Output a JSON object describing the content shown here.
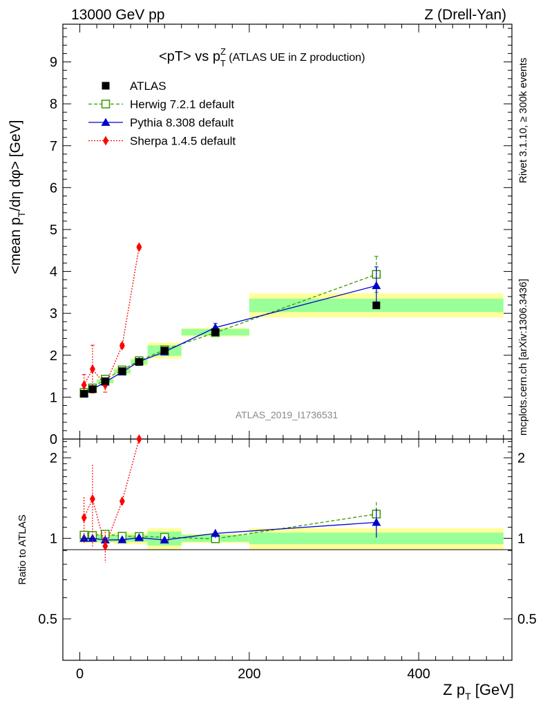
{
  "header": {
    "left": "13000 GeV pp",
    "right": "Z (Drell-Yan)"
  },
  "side_labels": {
    "rivet": "Rivet 3.1.10, ≥ 300k events",
    "mcplots": "mcplots.cern.ch [arXiv:1306.3436]"
  },
  "watermark": "ATLAS_2019_I1736531",
  "chart_data": {
    "type": "line",
    "title_main": "<pT> vs p",
    "title_sup": "Z",
    "title_sub": "T",
    "title_rest": " (ATLAS UE in Z production)",
    "ylabel_main": "<mean p",
    "ylabel_sub": "T",
    "ylabel_rest": "/dη dφ> [GeV]",
    "xlabel_main": "Z p",
    "xlabel_sub": "T",
    "xlabel_rest": " [GeV]",
    "ratio_ylabel": "Ratio to ATLAS",
    "xlim": [
      -20,
      510
    ],
    "ylim": [
      0,
      9.9
    ],
    "ratio_ylim": [
      0.35,
      2.35
    ],
    "x_ticks": [
      0,
      200,
      400
    ],
    "y_ticks": [
      0,
      1,
      2,
      3,
      4,
      5,
      6,
      7,
      8,
      9
    ],
    "ratio_ticks": [
      0.5,
      1,
      2
    ],
    "ratio_tick_labels": [
      "0.5",
      "1",
      "2"
    ],
    "data": {
      "name": "ATLAS",
      "color": "#000000",
      "x": [
        5,
        15,
        30,
        50,
        70,
        100,
        160,
        350
      ],
      "y": [
        1.08,
        1.19,
        1.38,
        1.62,
        1.84,
        2.11,
        2.55,
        3.19
      ],
      "bins": [
        [
          0,
          10
        ],
        [
          10,
          20
        ],
        [
          20,
          40
        ],
        [
          40,
          60
        ],
        [
          60,
          80
        ],
        [
          80,
          120
        ],
        [
          120,
          200
        ],
        [
          200,
          500
        ]
      ],
      "band_inner": [
        0.03,
        0.03,
        0.03,
        0.03,
        0.03,
        0.06,
        0.03,
        0.05
      ],
      "band_outer": [
        0.04,
        0.04,
        0.04,
        0.05,
        0.05,
        0.09,
        0.04,
        0.09
      ]
    },
    "series": [
      {
        "name": "Herwig 7.2.1 default",
        "color": "#339900",
        "style": "dashed",
        "marker": "open-square",
        "x": [
          5,
          15,
          30,
          50,
          70,
          100,
          160,
          350
        ],
        "y": [
          1.11,
          1.22,
          1.43,
          1.65,
          1.87,
          2.13,
          2.54,
          3.93
        ],
        "yerr": [
          0.02,
          0.03,
          0.03,
          0.04,
          0.05,
          0.06,
          0.08,
          0.43
        ]
      },
      {
        "name": "Pythia 8.308 default",
        "color": "#0000cc",
        "style": "solid",
        "marker": "triangle",
        "x": [
          5,
          15,
          30,
          50,
          70,
          100,
          160,
          350
        ],
        "y": [
          1.08,
          1.19,
          1.36,
          1.6,
          1.85,
          2.08,
          2.66,
          3.66
        ],
        "yerr": [
          0.02,
          0.02,
          0.03,
          0.04,
          0.05,
          0.06,
          0.1,
          0.45
        ]
      },
      {
        "name": "Sherpa 1.4.5 default",
        "color": "#ff0000",
        "style": "dotted",
        "marker": "diamond",
        "x": [
          5,
          15,
          30,
          50,
          70
        ],
        "y": [
          1.29,
          1.67,
          1.29,
          2.23,
          4.58
        ],
        "yerr": [
          0.25,
          0.57,
          0.17,
          0.05,
          0.05
        ]
      }
    ]
  }
}
